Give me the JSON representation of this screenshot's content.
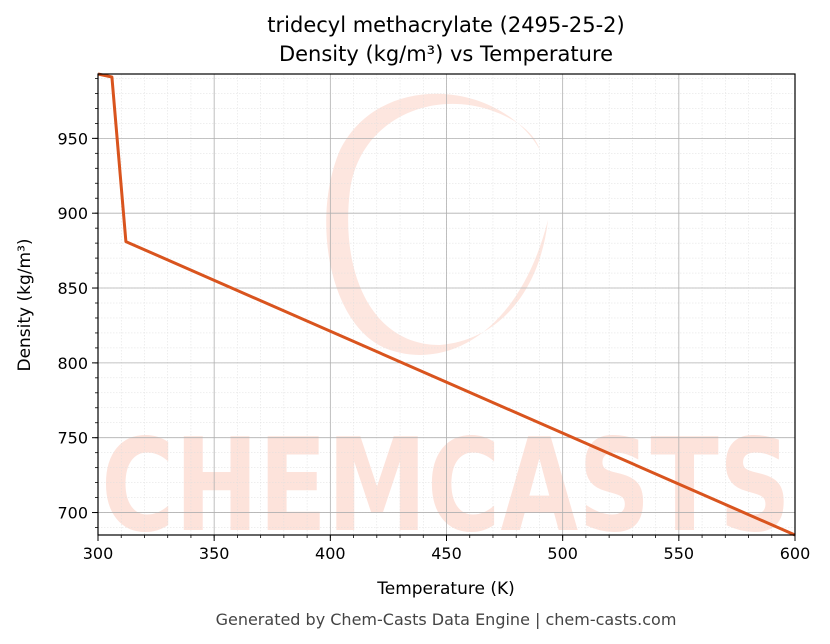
{
  "footer": "Generated by Chem-Casts Data Engine | chem-casts.com",
  "watermark": {
    "text": "CHEMCASTS",
    "color": "#fbd9d0"
  },
  "colors": {
    "line": "#d9541e",
    "grid_major": "#b0b0b0",
    "grid_minor": "#dedede"
  },
  "chart_data": {
    "type": "line",
    "title": "tridecyl methacrylate (2495-25-2)",
    "subtitle": "Density (kg/m³) vs Temperature",
    "xlabel": "Temperature (K)",
    "ylabel": "Density (kg/m³)",
    "xlim": [
      300,
      600
    ],
    "ylim": [
      685,
      993
    ],
    "xticks": [
      300,
      350,
      400,
      450,
      500,
      550,
      600
    ],
    "yticks": [
      700,
      750,
      800,
      850,
      900,
      950
    ],
    "grid": true,
    "series": [
      {
        "x": [
          300,
          306,
          312,
          600
        ],
        "y": [
          993,
          991,
          881,
          685
        ]
      }
    ]
  }
}
